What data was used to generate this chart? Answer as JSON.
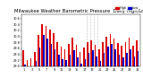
{
  "title": "Milwaukee Weather Barometric Pressure",
  "subtitle": "Daily High/Low",
  "high_color": "#dd0000",
  "low_color": "#0000cc",
  "legend_high": "High",
  "legend_low": "Low",
  "ylim_min": 29.0,
  "ylim_max": 30.75,
  "ytick_vals": [
    29.0,
    29.2,
    29.4,
    29.6,
    29.8,
    30.0,
    30.2,
    30.4,
    30.6
  ],
  "background_color": "#ffffff",
  "days": [
    1,
    2,
    3,
    4,
    5,
    6,
    7,
    8,
    9,
    10,
    11,
    12,
    13,
    14,
    15,
    16,
    17,
    18,
    19,
    20,
    21,
    22,
    23,
    24,
    25,
    26,
    27,
    28,
    29,
    30,
    31
  ],
  "high": [
    29.55,
    29.2,
    29.28,
    29.48,
    30.05,
    30.42,
    30.35,
    30.22,
    30.1,
    29.8,
    29.65,
    29.58,
    29.75,
    29.95,
    29.72,
    29.48,
    29.62,
    29.8,
    29.88,
    29.72,
    29.58,
    29.82,
    29.98,
    30.08,
    29.92,
    29.78,
    29.68,
    29.82,
    29.95,
    29.7,
    29.88
  ],
  "low": [
    29.05,
    28.95,
    29.0,
    29.18,
    29.62,
    30.05,
    29.92,
    29.75,
    29.58,
    29.38,
    29.25,
    29.2,
    29.38,
    29.55,
    29.3,
    29.1,
    29.25,
    29.45,
    29.55,
    29.32,
    29.18,
    29.45,
    29.65,
    29.75,
    29.58,
    29.4,
    29.3,
    29.45,
    29.58,
    29.32,
    29.5
  ],
  "vline_positions": [
    16.5,
    17.5,
    18.5,
    19.5
  ],
  "title_fontsize": 3.8,
  "tick_fontsize": 2.5,
  "legend_fontsize": 2.5,
  "bar_width": 0.38
}
